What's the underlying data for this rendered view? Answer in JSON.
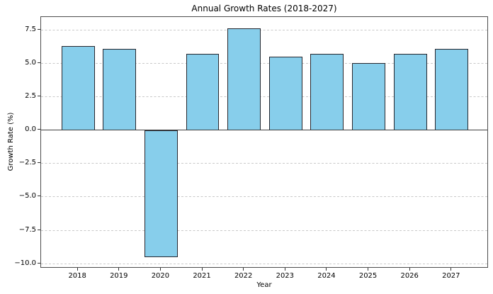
{
  "chart_data": {
    "type": "bar",
    "title": "Annual Growth Rates (2018-2027)",
    "xlabel": "Year",
    "ylabel": "Growth Rate (%)",
    "categories": [
      "2018",
      "2019",
      "2020",
      "2021",
      "2022",
      "2023",
      "2024",
      "2025",
      "2026",
      "2027"
    ],
    "values": [
      6.3,
      6.1,
      -9.5,
      5.7,
      7.6,
      5.5,
      5.7,
      5.0,
      5.7,
      6.1
    ],
    "ylim": [
      -10.36,
      8.46
    ],
    "xlim": [
      2017.11,
      2027.89
    ],
    "bar_width": 0.8,
    "yticks": [
      7.5,
      5.0,
      2.5,
      0.0,
      -2.5,
      -5.0,
      -7.5,
      -10.0
    ],
    "ytick_labels": [
      "7.5",
      "5.0",
      "2.5",
      "0.0",
      "−2.5",
      "−5.0",
      "−7.5",
      "−10.0"
    ],
    "grid": true,
    "grid_style": "dashed",
    "legend_position": "none",
    "colors": {
      "bar_fill": "#87CEEB",
      "bar_edge": "#27272e",
      "grid_line": "#c9c9c9",
      "spine": "#4d4d4d",
      "zero_line": "#3c3c3c",
      "tick": "#333333",
      "text": "#000000"
    }
  }
}
